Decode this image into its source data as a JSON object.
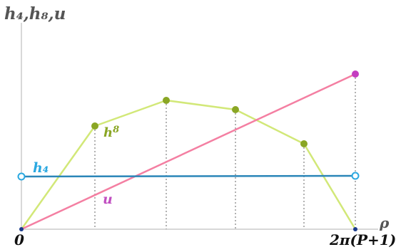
{
  "axes": {
    "y_label": "h₄,h₈,u",
    "x_label": "ρ",
    "x_start": "0",
    "x_end": "2π(P+1)"
  },
  "series": {
    "h8": {
      "label": "h",
      "superscript": "8",
      "color": "#8aa624",
      "line_color": "#d2e878"
    },
    "h4": {
      "label": "h₄",
      "color": "#2aa8e0",
      "line_color": "#2b86b8"
    },
    "u": {
      "label": "u",
      "color": "#c04ec0",
      "line_color": "#f47fa2",
      "end_color": "#c43dc0"
    }
  },
  "colors": {
    "axis": "#cccccc",
    "text": "#555555",
    "guide": "#999999",
    "origin": "#1a3a8a"
  }
}
